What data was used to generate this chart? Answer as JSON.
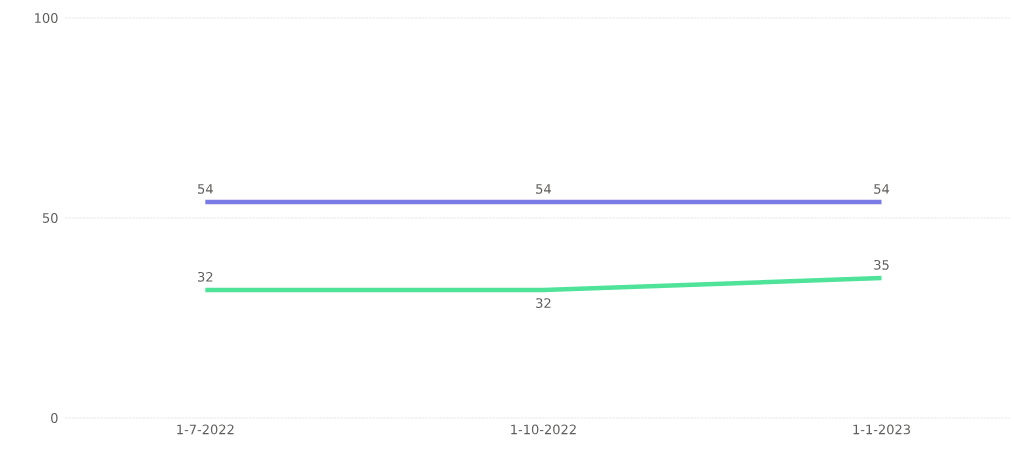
{
  "chart_data": {
    "type": "line",
    "categories": [
      "1-7-2022",
      "1-10-2022",
      "1-1-2023"
    ],
    "series": [
      {
        "color": "#7b7be8",
        "values": [
          54,
          54,
          54
        ],
        "value_labels": [
          "54",
          "54",
          "54"
        ]
      },
      {
        "color": "#4fe39a",
        "values": [
          32,
          32,
          35
        ],
        "value_labels": [
          "32",
          "32",
          "35"
        ]
      }
    ],
    "ylim": [
      0,
      100
    ],
    "yticks": [
      0,
      50,
      100
    ],
    "grid": "y",
    "marker": "none",
    "line_style": "solid"
  }
}
